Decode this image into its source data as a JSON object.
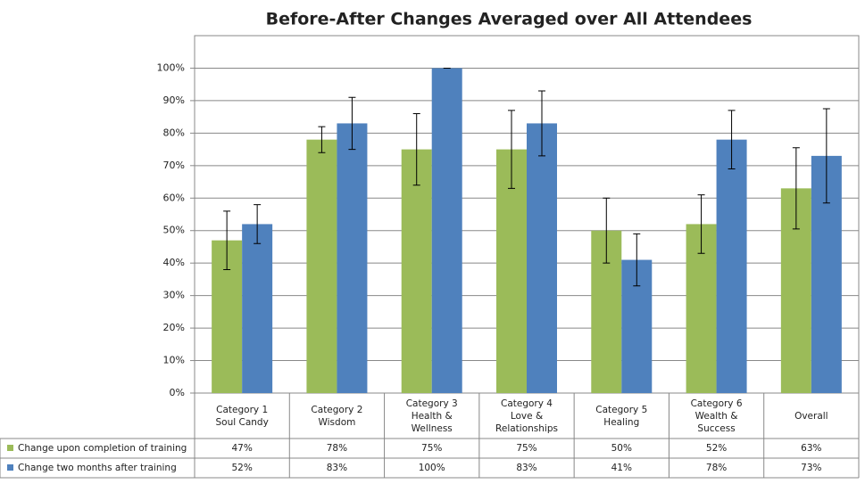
{
  "chart_data": {
    "type": "bar",
    "title": "Before-After Changes Averaged over All Attendees",
    "categories": [
      "Category 1 Soul Candy",
      "Category 2 Wisdom",
      "Category 3 Health & Wellness",
      "Category 4 Love & Relationships",
      "Category 5 Healing",
      "Category 6 Wealth & Success",
      "Overall"
    ],
    "series": [
      {
        "name": "Change upon completion of training",
        "color": "#9bbb59",
        "values": [
          47,
          78,
          75,
          75,
          50,
          52,
          63
        ],
        "value_labels": [
          "47%",
          "78%",
          "75%",
          "75%",
          "50%",
          "52%",
          "63%"
        ],
        "errors": [
          9,
          4,
          11,
          12,
          10,
          9,
          12.5
        ]
      },
      {
        "name": "Change two months after training",
        "color": "#4f81bd",
        "values": [
          52,
          83,
          100,
          83,
          41,
          78,
          73
        ],
        "value_labels": [
          "52%",
          "83%",
          "100%",
          "83%",
          "41%",
          "78%",
          "73%"
        ],
        "errors": [
          6,
          8,
          0,
          10,
          8,
          9,
          14.5
        ]
      }
    ],
    "ylim": [
      0,
      110
    ],
    "yticks": [
      {
        "value": 0,
        "label": "0%"
      },
      {
        "value": 10,
        "label": "10%"
      },
      {
        "value": 20,
        "label": "20%"
      },
      {
        "value": 30,
        "label": "30%"
      },
      {
        "value": 40,
        "label": "40%"
      },
      {
        "value": 50,
        "label": "50%"
      },
      {
        "value": 60,
        "label": "60%"
      },
      {
        "value": 70,
        "label": "70%"
      },
      {
        "value": 80,
        "label": "80%"
      },
      {
        "value": 90,
        "label": "90%"
      },
      {
        "value": 100,
        "label": "100%"
      }
    ],
    "grid": true
  }
}
